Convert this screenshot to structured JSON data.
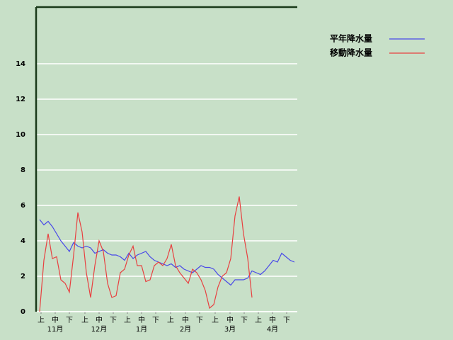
{
  "chart_data": {
    "type": "line",
    "x": [
      2,
      5,
      8,
      11,
      14,
      17,
      20,
      23,
      26,
      29,
      32,
      35,
      38,
      41,
      44,
      47,
      50,
      53,
      56,
      59,
      62,
      65,
      68,
      71,
      74,
      77,
      80,
      83,
      86,
      89,
      92,
      95,
      98,
      101,
      104,
      107,
      110,
      113,
      116,
      119,
      122,
      125,
      128,
      131,
      134,
      137,
      140,
      143,
      146,
      149,
      152,
      155,
      158,
      161,
      164,
      167,
      170,
      173,
      176,
      179,
      182
    ],
    "series": [
      {
        "name": "平年降水量",
        "color": "#4848e8",
        "values": [
          5.2,
          4.9,
          5.1,
          4.8,
          4.4,
          4.0,
          3.7,
          3.4,
          3.9,
          3.7,
          3.6,
          3.7,
          3.6,
          3.3,
          3.4,
          3.5,
          3.3,
          3.2,
          3.2,
          3.1,
          2.9,
          3.3,
          3.0,
          3.2,
          3.3,
          3.4,
          3.1,
          2.9,
          2.8,
          2.7,
          2.6,
          2.7,
          2.5,
          2.6,
          2.4,
          2.3,
          2.2,
          2.4,
          2.6,
          2.5,
          2.5,
          2.4,
          2.1,
          1.9,
          1.7,
          1.5,
          1.8,
          1.8,
          1.8,
          1.9,
          2.3,
          2.2,
          2.1,
          2.3,
          2.6,
          2.9,
          2.8,
          3.3,
          3.1,
          2.9,
          2.8
        ]
      },
      {
        "name": "移動降水量",
        "color": "#e84040",
        "values": [
          0,
          2.9,
          4.4,
          3.0,
          3.1,
          1.8,
          1.6,
          1.1,
          3.2,
          5.6,
          4.5,
          2.2,
          0.8,
          2.6,
          4.0,
          3.4,
          1.6,
          0.8,
          0.9,
          2.2,
          2.4,
          3.2,
          3.7,
          2.6,
          2.6,
          1.7,
          1.8,
          2.6,
          2.8,
          2.6,
          3.0,
          3.8,
          2.6,
          2.2,
          1.9,
          1.6,
          2.4,
          2.2,
          1.8,
          1.2,
          0.2,
          0.4,
          1.4,
          2.0,
          2.2,
          3.0,
          5.4,
          6.5,
          4.4,
          3.0,
          0.8,
          null,
          null,
          null,
          null,
          null,
          null,
          null,
          null,
          null,
          null
        ]
      }
    ],
    "xlim": [
      0,
      184
    ],
    "ylim": [
      0,
      17.2
    ],
    "yticks": [
      0,
      2,
      4,
      6,
      8,
      10,
      12,
      14
    ],
    "xticks": [
      {
        "value": 3,
        "label": "上"
      },
      {
        "value": 13,
        "label": "中"
      },
      {
        "value": 23,
        "label": "下"
      },
      {
        "value": 34,
        "label": "上"
      },
      {
        "value": 44,
        "label": "中"
      },
      {
        "value": 54,
        "label": "下"
      },
      {
        "value": 64,
        "label": "上"
      },
      {
        "value": 74,
        "label": "中"
      },
      {
        "value": 84,
        "label": "下"
      },
      {
        "value": 94.5,
        "label": "上"
      },
      {
        "value": 105,
        "label": "中"
      },
      {
        "value": 115,
        "label": "下"
      },
      {
        "value": 126,
        "label": "上"
      },
      {
        "value": 136.5,
        "label": "中"
      },
      {
        "value": 146.5,
        "label": "下"
      },
      {
        "value": 156.5,
        "label": "上"
      },
      {
        "value": 166.5,
        "label": "中"
      },
      {
        "value": 176.5,
        "label": "下"
      }
    ],
    "month_labels": [
      {
        "value": 13,
        "label": "11月"
      },
      {
        "value": 44,
        "label": "12月"
      },
      {
        "value": 74,
        "label": "1月"
      },
      {
        "value": 105,
        "label": "2月"
      },
      {
        "value": 136.5,
        "label": "3月"
      },
      {
        "value": 166.5,
        "label": "4月"
      }
    ],
    "grid": true
  }
}
